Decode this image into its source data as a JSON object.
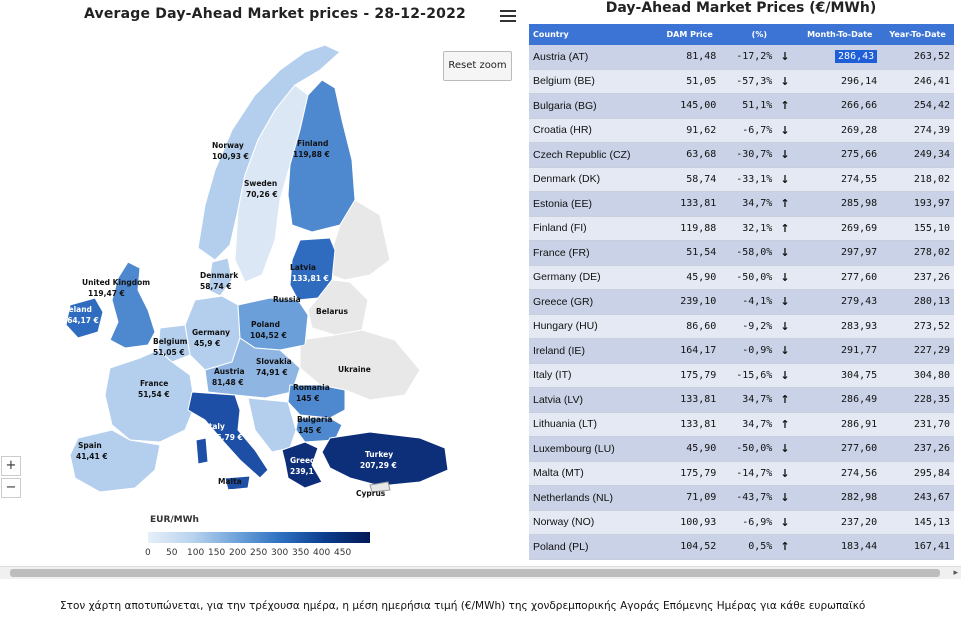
{
  "map": {
    "title": "Average Day-Ahead Market prices - 28-12-2022",
    "reset_zoom": "Reset zoom",
    "zoom_in": "+",
    "zoom_out": "−",
    "legend_title": "EUR/MWh",
    "legend_ticks": [
      "0",
      "50",
      "100",
      "150",
      "200",
      "250",
      "300",
      "350",
      "400",
      "450"
    ],
    "labels": {
      "norway_name": "Norway",
      "norway_val": "100,93 €",
      "finland_name": "Finland",
      "finland_val": "119,88 €",
      "sweden_name": "Sweden",
      "sweden_val": "70,26 €",
      "uk_name": "United Kingdom",
      "uk_val": "119,47 €",
      "ireland_name": "Ireland",
      "ireland_val": "164,17 €",
      "denmark_name": "Denmark",
      "denmark_val": "58,74 €",
      "latvia_name": "Latvia",
      "latvia_val": "133,81 €",
      "russia_name": "Russia",
      "belarus_name": "Belarus",
      "poland_name": "Poland",
      "poland_val": "104,52 €",
      "germany_name": "Germany",
      "germany_val": "45,9 €",
      "belgium_name": "Belgium",
      "belgium_val": "51,05 €",
      "slovakia_name": "Slovakia",
      "slovakia_val": "74,91 €",
      "ukraine_name": "Ukraine",
      "france_name": "France",
      "france_val": "51,54 €",
      "austria_name": "Austria",
      "austria_val": "81,48 €",
      "romania_name": "Romania",
      "romania_val": "145 €",
      "bulgaria_name": "Bulgaria",
      "bulgaria_val": "145 €",
      "italy_name": "Italy",
      "italy_val": "175,79 €",
      "spain_name": "Spain",
      "spain_val": "41,41 €",
      "greece_name": "Greece",
      "greece_val": "239,1 €",
      "turkey_name": "Turkey",
      "turkey_val": "207,29 €",
      "malta_name": "Malta",
      "malta_val": "175,79 €",
      "cyprus_name": "Cyprus"
    },
    "colors": {
      "very_light": "#dbe7f5",
      "light": "#b3cfed",
      "mid_light": "#8fb6e3",
      "mid": "#6a9fd9",
      "mid_dark": "#4e88cf",
      "dark": "#2f6cc0",
      "darker": "#1d4fa6",
      "darkest": "#0d2f7a",
      "gray": "#e8e8e8",
      "sea": "#ffffff"
    }
  },
  "table": {
    "title": "Day-Ahead Market Prices (€/MWh)",
    "headers": [
      "Country",
      "DAM Price",
      "(%)",
      "Month-To-Date",
      "Year-To-Date"
    ],
    "rows": [
      {
        "country": "Austria (AT)",
        "price": "81,48",
        "pct": "-17,2%",
        "dir": "down",
        "mtd": "286,43",
        "ytd": "263,52"
      },
      {
        "country": "Belgium (BE)",
        "price": "51,05",
        "pct": "-57,3%",
        "dir": "down",
        "mtd": "296,14",
        "ytd": "246,41"
      },
      {
        "country": "Bulgaria (BG)",
        "price": "145,00",
        "pct": "51,1%",
        "dir": "up",
        "mtd": "266,66",
        "ytd": "254,42"
      },
      {
        "country": "Croatia (HR)",
        "price": "91,62",
        "pct": "-6,7%",
        "dir": "down",
        "mtd": "269,28",
        "ytd": "274,39"
      },
      {
        "country": "Czech Republic (CZ)",
        "price": "63,68",
        "pct": "-30,7%",
        "dir": "down",
        "mtd": "275,66",
        "ytd": "249,34"
      },
      {
        "country": "Denmark (DK)",
        "price": "58,74",
        "pct": "-33,1%",
        "dir": "down",
        "mtd": "274,55",
        "ytd": "218,02"
      },
      {
        "country": "Estonia (EE)",
        "price": "133,81",
        "pct": "34,7%",
        "dir": "up",
        "mtd": "285,98",
        "ytd": "193,97"
      },
      {
        "country": "Finland (FI)",
        "price": "119,88",
        "pct": "32,1%",
        "dir": "up",
        "mtd": "269,69",
        "ytd": "155,10"
      },
      {
        "country": "France (FR)",
        "price": "51,54",
        "pct": "-58,0%",
        "dir": "down",
        "mtd": "297,97",
        "ytd": "278,02"
      },
      {
        "country": "Germany (DE)",
        "price": "45,90",
        "pct": "-50,0%",
        "dir": "down",
        "mtd": "277,60",
        "ytd": "237,26"
      },
      {
        "country": "Greece (GR)",
        "price": "239,10",
        "pct": "-4,1%",
        "dir": "down",
        "mtd": "279,43",
        "ytd": "280,13"
      },
      {
        "country": "Hungary (HU)",
        "price": "86,60",
        "pct": "-9,2%",
        "dir": "down",
        "mtd": "283,93",
        "ytd": "273,52"
      },
      {
        "country": "Ireland (IE)",
        "price": "164,17",
        "pct": "-0,9%",
        "dir": "down",
        "mtd": "291,77",
        "ytd": "227,29"
      },
      {
        "country": "Italy (IT)",
        "price": "175,79",
        "pct": "-15,6%",
        "dir": "down",
        "mtd": "304,75",
        "ytd": "304,80"
      },
      {
        "country": "Latvia (LV)",
        "price": "133,81",
        "pct": "34,7%",
        "dir": "up",
        "mtd": "286,49",
        "ytd": "228,35"
      },
      {
        "country": "Lithuania (LT)",
        "price": "133,81",
        "pct": "34,7%",
        "dir": "up",
        "mtd": "286,91",
        "ytd": "231,70"
      },
      {
        "country": "Luxembourg (LU)",
        "price": "45,90",
        "pct": "-50,0%",
        "dir": "down",
        "mtd": "277,60",
        "ytd": "237,26"
      },
      {
        "country": "Malta (MT)",
        "price": "175,79",
        "pct": "-14,7%",
        "dir": "down",
        "mtd": "274,56",
        "ytd": "295,84"
      },
      {
        "country": "Netherlands (NL)",
        "price": "71,09",
        "pct": "-43,7%",
        "dir": "down",
        "mtd": "282,98",
        "ytd": "243,67"
      },
      {
        "country": "Norway (NO)",
        "price": "100,93",
        "pct": "-6,9%",
        "dir": "down",
        "mtd": "237,20",
        "ytd": "145,13"
      },
      {
        "country": "Poland (PL)",
        "price": "104,52",
        "pct": "0,5%",
        "dir": "up",
        "mtd": "183,44",
        "ytd": "167,41"
      }
    ],
    "selected_cell": "286,43",
    "up_arrow": "↑",
    "down_arrow": "↓"
  },
  "scrollbar": {
    "right_arrow": "▸"
  },
  "caption": "Στον χάρτη αποτυπώνεται, για την τρέχουσα ημέρα, η μέση ημερήσια τιμή (€/MWh) της χονδρεμπορικής Αγοράς Επόμενης Ημέρας για κάθε ευρωπαϊκό"
}
